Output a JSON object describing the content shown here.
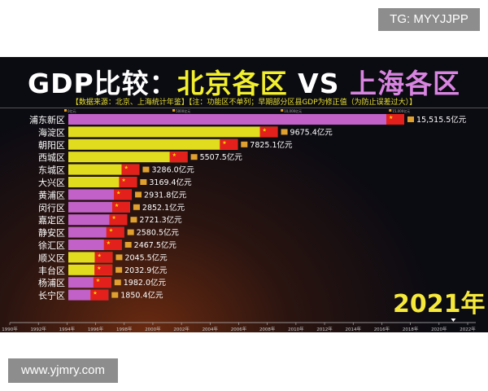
{
  "watermark_top": "TG: MYYJJPP",
  "watermark_bottom": "www.yjmry.com",
  "title": {
    "part1": "GDP比较：",
    "part2": "北京各区",
    "part3": " VS ",
    "part4": "上海各区"
  },
  "subtitle": "【数据来源：北京、上海统计年鉴】【注：功能区不单列；早期部分区县GDP为修正值（为防止误差过大）】",
  "year_label": "2021年",
  "colors": {
    "beijing": "#e2dc1e",
    "shanghai": "#c262c9",
    "flag": "#e3201b"
  },
  "chart_data": {
    "type": "bar",
    "orientation": "horizontal",
    "unit": "亿元",
    "xlim": [
      0,
      15515.5
    ],
    "x_ticks": [
      "0亿元",
      "5000亿元",
      "10,000亿元",
      "15,000亿元"
    ],
    "x_tick_values": [
      0,
      5000,
      10000,
      15000
    ],
    "categories": [
      "浦东新区",
      "海淀区",
      "朝阳区",
      "西城区",
      "东城区",
      "大兴区",
      "黄浦区",
      "闵行区",
      "嘉定区",
      "静安区",
      "徐汇区",
      "顺义区",
      "丰台区",
      "杨浦区",
      "长宁区"
    ],
    "values": [
      15515.5,
      9675.4,
      7825.1,
      5507.5,
      3286.0,
      3169.4,
      2931.8,
      2852.1,
      2721.3,
      2580.5,
      2467.5,
      2045.5,
      2032.9,
      1982.0,
      1850.4
    ],
    "labels": [
      "15,515.5亿元",
      "9675.4亿元",
      "7825.1亿元",
      "5507.5亿元",
      "3286.0亿元",
      "3169.4亿元",
      "2931.8亿元",
      "2852.1亿元",
      "2721.3亿元",
      "2580.5亿元",
      "2467.5亿元",
      "2045.5亿元",
      "2032.9亿元",
      "1982.0亿元",
      "1850.4亿元"
    ],
    "city": [
      "shanghai",
      "beijing",
      "beijing",
      "beijing",
      "beijing",
      "beijing",
      "shanghai",
      "shanghai",
      "shanghai",
      "shanghai",
      "shanghai",
      "beijing",
      "beijing",
      "shanghai",
      "shanghai"
    ],
    "timeline": {
      "years": [
        "1990年",
        "1992年",
        "1994年",
        "1996年",
        "1998年",
        "2000年",
        "2002年",
        "2004年",
        "2006年",
        "2008年",
        "2010年",
        "2012年",
        "2014年",
        "2016年",
        "2018年",
        "2020年",
        "2022年"
      ],
      "current": 2021
    }
  }
}
